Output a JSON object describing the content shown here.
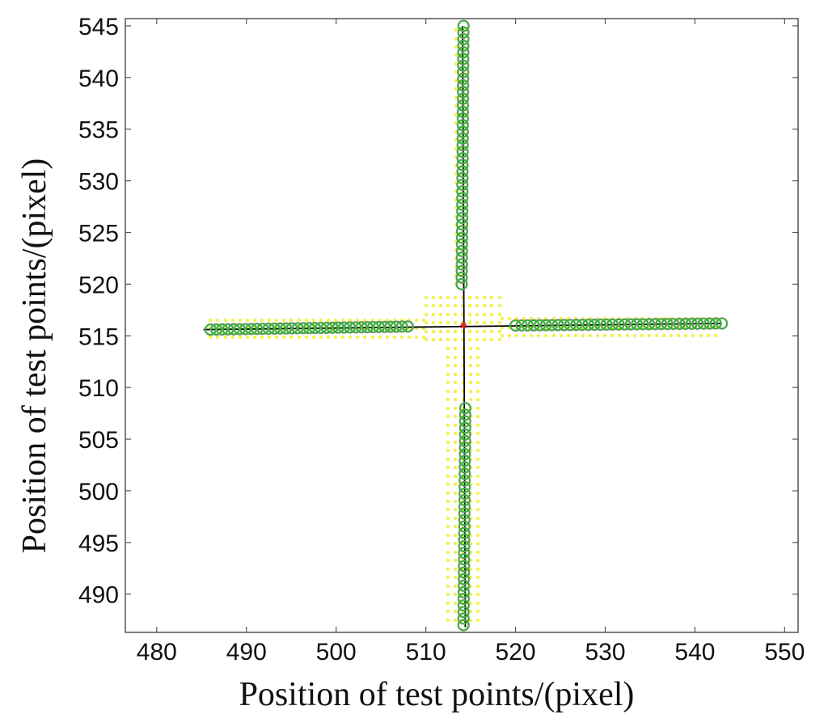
{
  "chart_data": {
    "type": "scatter",
    "title": "",
    "xlabel": "Position of test points/(pixel)",
    "ylabel": "Position of test points/(pixel)",
    "xlim": [
      476.5,
      551.5
    ],
    "ylim": [
      486.3,
      545.7
    ],
    "x_ticks": [
      480,
      490,
      500,
      510,
      520,
      530,
      540,
      550
    ],
    "y_ticks": [
      490,
      495,
      500,
      505,
      510,
      515,
      520,
      525,
      530,
      535,
      540,
      545
    ],
    "grid": false,
    "legend": "none",
    "colors": {
      "fitted_line": "#000000",
      "detected_points": "#1fbf1f",
      "reference_points": "#888888",
      "candidate_points": "#f2f24a",
      "center": "#e02020"
    },
    "series": [
      {
        "role": "fitted_line",
        "segments": [
          [
            [
              485.2,
              515.6
            ],
            [
              543.0,
              516.2
            ]
          ],
          [
            [
              514.1,
              545.0
            ],
            [
              514.4,
              486.8
            ]
          ]
        ]
      },
      {
        "role": "detected_points",
        "marker": "circle",
        "groups": [
          {
            "x_from": 486.0,
            "x_to": 508.0,
            "y_from": 515.6,
            "y_to": 515.9,
            "count": 35
          },
          {
            "x_from": 520.0,
            "x_to": 543.0,
            "y_from": 516.0,
            "y_to": 516.2,
            "count": 35
          },
          {
            "y_from": 520.0,
            "y_to": 545.0,
            "x_from": 514.0,
            "x_to": 514.2,
            "count": 40
          },
          {
            "y_from": 487.0,
            "y_to": 508.0,
            "x_from": 514.2,
            "x_to": 514.4,
            "count": 34
          }
        ]
      },
      {
        "role": "candidate_points",
        "marker": "dot",
        "regions": [
          {
            "x_from": 486.0,
            "x_to": 510.0,
            "y_from": 514.9,
            "y_to": 517.0
          },
          {
            "x_from": 518.5,
            "x_to": 543.0,
            "y_from": 515.0,
            "y_to": 517.1
          },
          {
            "x_from": 513.4,
            "x_to": 514.9,
            "y_from": 520.0,
            "y_to": 545.0
          },
          {
            "x_from": 512.5,
            "x_to": 515.9,
            "y_from": 487.5,
            "y_to": 514.5
          },
          {
            "x_from": 510.0,
            "x_to": 518.5,
            "y_from": 514.6,
            "y_to": 519.0
          }
        ]
      },
      {
        "role": "center",
        "marker": "star",
        "points": [
          [
            514.2,
            516.0
          ]
        ]
      }
    ]
  }
}
